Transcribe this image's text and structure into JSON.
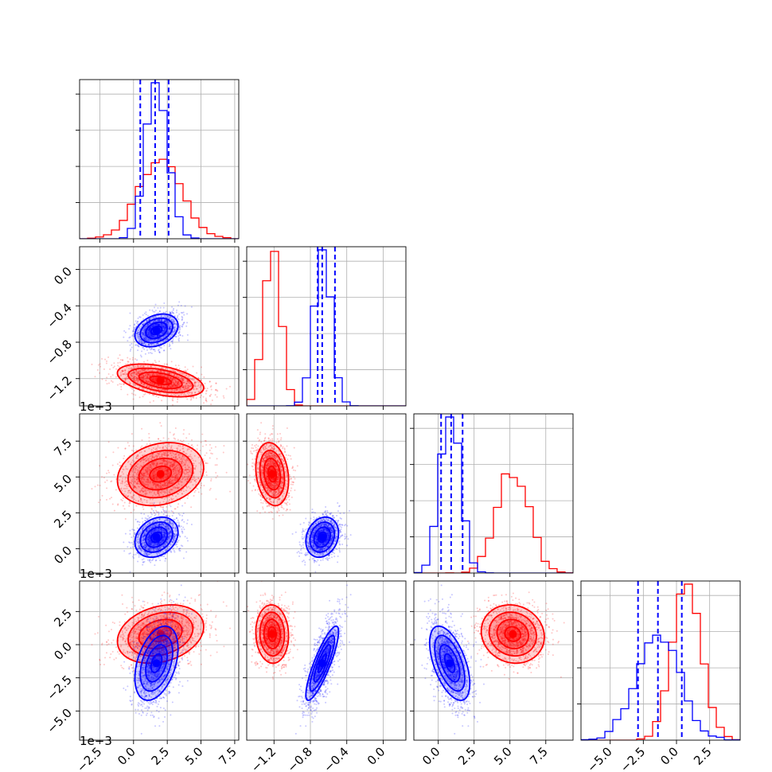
{
  "chart_data": {
    "type": "corner",
    "series": [
      {
        "name": "",
        "color": "#ff0000",
        "mean": [
          0.002,
          -0.00122,
          0.0052,
          0.0008
        ],
        "sigma": [
          0.0016,
          9e-05,
          0.0011,
          0.0011
        ],
        "corr": [
          [
            1,
            -0.45,
            0.2,
            0.25
          ],
          [
            -0.45,
            1,
            -0.2,
            -0.05
          ],
          [
            0.2,
            -0.2,
            1,
            -0.1
          ],
          [
            0.25,
            -0.05,
            -0.1,
            1
          ]
        ]
      },
      {
        "name": "",
        "color": "#0000ff",
        "mean": [
          0.0017,
          -0.00067,
          0.0008,
          -0.0014
        ],
        "sigma": [
          0.0008,
          9e-05,
          0.0007,
          0.0014
        ],
        "corr": [
          [
            1,
            0.3,
            0.25,
            0.4
          ],
          [
            0.3,
            1,
            0.2,
            0.85
          ],
          [
            0.25,
            0.2,
            1,
            -0.55
          ],
          [
            0.4,
            0.85,
            -0.55,
            1
          ]
        ]
      }
    ],
    "ranges": [
      [
        -0.004,
        0.0078
      ],
      [
        -0.0015,
        0.00025
      ],
      [
        -0.0017,
        0.0094
      ],
      [
        -0.0072,
        0.0048
      ]
    ],
    "ticks": [
      [
        -0.0025,
        0.0,
        0.0025,
        0.005,
        0.0075
      ],
      [
        -0.0012,
        -0.0008,
        -0.0004,
        0.0
      ],
      [
        0.0,
        0.0025,
        0.005,
        0.0075
      ],
      [
        -0.005,
        -0.0025,
        0.0,
        0.0025
      ]
    ],
    "tick_labels": [
      [
        "−2.5",
        "0.0",
        "2.5",
        "5.0",
        "7.5"
      ],
      [
        "−1.2",
        "−0.8",
        "−0.4",
        "0.0"
      ],
      [
        "0.0",
        "2.5",
        "5.0",
        "7.5"
      ],
      [
        "−5.0",
        "−2.5",
        "0.0",
        "2.5"
      ]
    ],
    "offset_text": "1e−3",
    "quantile_lines": [
      [
        0.0005,
        0.0016,
        0.0026
      ],
      [
        -0.00072,
        -0.00067,
        -0.00053
      ],
      [
        0.0002,
        0.0009,
        0.0017
      ],
      [
        -0.0029,
        -0.0014,
        0.0004
      ]
    ],
    "quantile_color": "#0000ff",
    "contour_levels_sigma": [
      0.5,
      1.0,
      1.5,
      2.0
    ],
    "grid": true
  }
}
